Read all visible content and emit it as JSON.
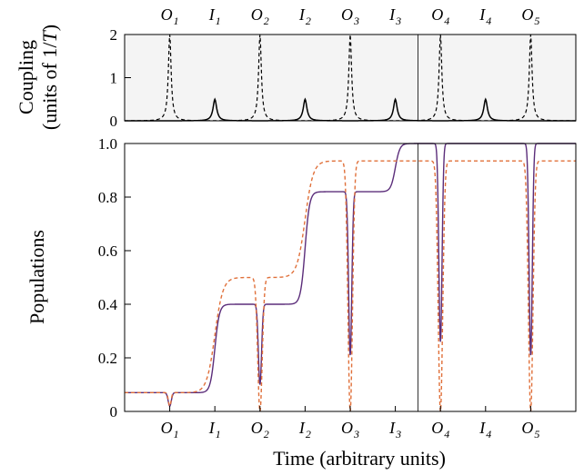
{
  "chart_data": [
    {
      "type": "line",
      "panel": "coupling",
      "ylabel_lines": [
        "Coupling",
        "(units of 1/",
        "T",
        ")"
      ],
      "ylim": [
        0,
        2
      ],
      "yticks": [
        "0",
        "1",
        "2"
      ],
      "xlim": [
        0,
        10
      ],
      "grid": false,
      "top_labels": [
        {
          "base": "O",
          "sub": "1",
          "x": 1.0
        },
        {
          "base": "I",
          "sub": "1",
          "x": 2.0
        },
        {
          "base": "O",
          "sub": "2",
          "x": 3.0
        },
        {
          "base": "I",
          "sub": "2",
          "x": 4.0
        },
        {
          "base": "O",
          "sub": "3",
          "x": 5.0
        },
        {
          "base": "I",
          "sub": "3",
          "x": 6.0
        },
        {
          "base": "O",
          "sub": "4",
          "x": 7.0
        },
        {
          "base": "I",
          "sub": "4",
          "x": 8.0
        },
        {
          "base": "O",
          "sub": "5",
          "x": 9.0
        }
      ],
      "series": [
        {
          "style": "dashed",
          "color": "#000000",
          "pulse_centers": [
            1.0,
            3.0,
            5.0,
            7.0,
            9.0
          ],
          "peak": 2.0,
          "width": 0.06
        },
        {
          "style": "solid",
          "color": "#000000",
          "pulse_centers": [
            2.0,
            4.0,
            6.0,
            8.0
          ],
          "peak": 0.5,
          "width": 0.08
        }
      ],
      "vline_x": 6.5
    },
    {
      "type": "line",
      "panel": "populations",
      "ylabel": "Populations",
      "xlabel": "Time (arbitrary units)",
      "ylim": [
        0,
        1.0
      ],
      "yticks": [
        "0",
        "0.2",
        "0.4",
        "0.6",
        "0.8",
        "1.0"
      ],
      "xlim": [
        0,
        10
      ],
      "grid": false,
      "bottom_labels": [
        {
          "base": "O",
          "sub": "1",
          "x": 1.0
        },
        {
          "base": "I",
          "sub": "1",
          "x": 2.0
        },
        {
          "base": "O",
          "sub": "2",
          "x": 3.0
        },
        {
          "base": "I",
          "sub": "2",
          "x": 4.0
        },
        {
          "base": "O",
          "sub": "3",
          "x": 5.0
        },
        {
          "base": "I",
          "sub": "3",
          "x": 6.0
        },
        {
          "base": "O",
          "sub": "4",
          "x": 7.0
        },
        {
          "base": "I",
          "sub": "4",
          "x": 8.0
        },
        {
          "base": "O",
          "sub": "5",
          "x": 9.0
        }
      ],
      "series": [
        {
          "style": "solid",
          "color": "#5b2d7a",
          "levels": [
            0.07,
            0.4,
            0.82,
            1.0,
            1.0,
            0.82
          ],
          "step_centers": [
            2.0,
            4.0,
            6.0,
            8.0
          ],
          "step_width": 0.05,
          "dips": [
            {
              "x": 1.0,
              "min": 0.02,
              "width": 0.035
            },
            {
              "x": 3.0,
              "min": 0.1,
              "width": 0.035
            },
            {
              "x": 5.0,
              "min": 0.21,
              "width": 0.035
            },
            {
              "x": 7.0,
              "min": 0.26,
              "width": 0.035
            },
            {
              "x": 9.0,
              "min": 0.21,
              "width": 0.035
            }
          ]
        },
        {
          "style": "dashed",
          "color": "#e0703a",
          "levels": [
            0.07,
            0.5,
            0.935,
            0.935,
            0.935,
            0.505
          ],
          "step_centers": [
            2.0,
            4.0,
            6.0,
            8.0
          ],
          "step_width": 0.09,
          "dips": [
            {
              "x": 1.0,
              "min": 0.02,
              "width": 0.03
            },
            {
              "x": 3.0,
              "min": 0.0,
              "width": 0.05
            },
            {
              "x": 5.0,
              "min": 0.0,
              "width": 0.05
            },
            {
              "x": 7.0,
              "min": 0.0,
              "width": 0.05
            },
            {
              "x": 9.0,
              "min": 0.0,
              "width": 0.05
            }
          ]
        }
      ],
      "vline_x": 6.5
    }
  ]
}
